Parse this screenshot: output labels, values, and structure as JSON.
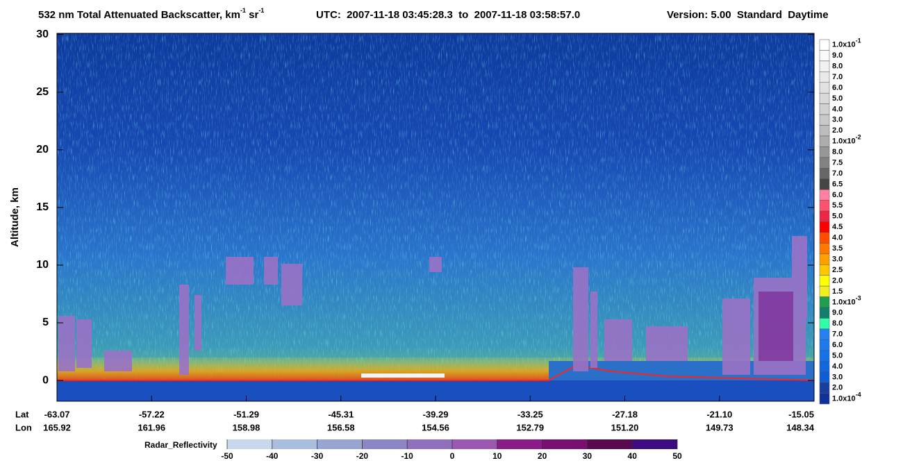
{
  "chart_data": {
    "type": "heatmap",
    "title": {
      "main": "532 nm Total Attenuated Backscatter, km",
      "sup1": "-1",
      "unit2": " sr",
      "sup2": "-1",
      "utc": "UTC:  2007-11-18 03:45:28.3  to  2007-11-18 03:58:57.0",
      "version": "Version: 5.00  Standard  Daytime"
    },
    "ylabel": "Altitude, km",
    "ylim": [
      -1.8,
      30.1
    ],
    "yticks": [
      0,
      5,
      10,
      15,
      20,
      25,
      30
    ],
    "x_rows": [
      {
        "name": "Lat",
        "labels": [
          "-63.07",
          "-57.22",
          "-51.29",
          "-45.31",
          "-39.29",
          "-33.25",
          "-27.18",
          "-21.10",
          "-15.05"
        ]
      },
      {
        "name": "Lon",
        "labels": [
          "165.92",
          "161.96",
          "158.98",
          "156.58",
          "154.56",
          "152.79",
          "151.20",
          "149.73",
          "148.34"
        ]
      }
    ],
    "colorbar": {
      "labels": [
        {
          "text": "1.0x10",
          "sup": "-1"
        },
        "9.0",
        "8.0",
        "7.0",
        "6.0",
        "5.0",
        "4.0",
        "3.0",
        "2.0",
        {
          "text": "1.0x10",
          "sup": "-2"
        },
        "8.0",
        "7.5",
        "7.0",
        "6.5",
        "6.0",
        "5.5",
        "5.0",
        "4.5",
        "4.0",
        "3.5",
        "3.0",
        "2.5",
        "2.0",
        "1.5",
        {
          "text": "1.0x10",
          "sup": "-3"
        },
        "9.0",
        "8.0",
        "7.0",
        "6.0",
        "5.0",
        "4.0",
        "3.0",
        "2.0",
        {
          "text": "1.0x10",
          "sup": "-4"
        }
      ],
      "colors": [
        "#ffffff",
        "#f9f9f9",
        "#f1f1f1",
        "#e9e9e9",
        "#e1e1e1",
        "#d9d9d9",
        "#d1d1d1",
        "#c9c9c9",
        "#bdbdbd",
        "#adadad",
        "#979797",
        "#828282",
        "#676767",
        "#454545",
        "#ff80a2",
        "#ff5070",
        "#f02444",
        "#ff0000",
        "#ff4c00",
        "#ff7800",
        "#ffa000",
        "#ffc800",
        "#ffff00",
        "#f0f020",
        "#1f9e50",
        "#10806a",
        "#30ffaa",
        "#2282f2",
        "#1c7aee",
        "#1672e8",
        "#1068e0",
        "#0e5cd8",
        "#163f9e",
        "#10309a"
      ]
    },
    "radar_colorbar": {
      "label": "Radar_Reflectivity",
      "lim": [
        -50,
        50
      ],
      "ticks": [
        -50,
        -40,
        -30,
        -20,
        -10,
        0,
        10,
        20,
        30,
        40,
        50
      ],
      "colors": [
        "#c8d8ec",
        "#a8bedc",
        "#98a4d2",
        "#8c86c4",
        "#9070bc",
        "#9a58b0",
        "#8a1c8a",
        "#781070",
        "#5c0850",
        "#3c0c80"
      ]
    }
  }
}
